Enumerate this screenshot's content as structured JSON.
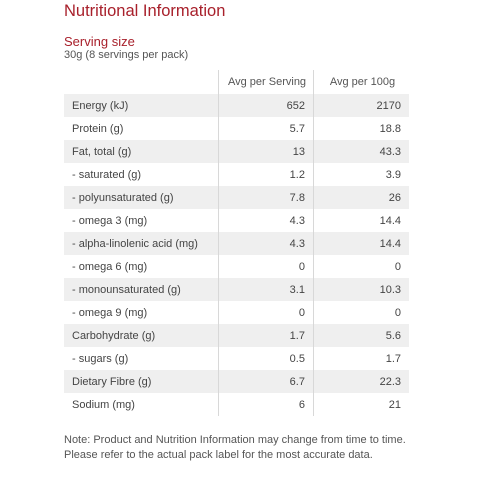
{
  "title": "Nutritional Information",
  "serving": {
    "heading": "Serving size",
    "detail": "30g (8 servings per pack)"
  },
  "table": {
    "headers": [
      "",
      "Avg per Serving",
      "Avg per 100g"
    ],
    "rows": [
      {
        "name": "Energy (kJ)",
        "per_serving": "652",
        "per_100g": "2170"
      },
      {
        "name": "Protein (g)",
        "per_serving": "5.7",
        "per_100g": "18.8"
      },
      {
        "name": "Fat, total (g)",
        "per_serving": "13",
        "per_100g": "43.3"
      },
      {
        "name": "- saturated (g)",
        "per_serving": "1.2",
        "per_100g": "3.9"
      },
      {
        "name": "- polyunsaturated (g)",
        "per_serving": "7.8",
        "per_100g": "26"
      },
      {
        "name": "- omega 3 (mg)",
        "per_serving": "4.3",
        "per_100g": "14.4"
      },
      {
        "name": "- alpha-linolenic acid (mg)",
        "per_serving": "4.3",
        "per_100g": "14.4"
      },
      {
        "name": "- omega 6 (mg)",
        "per_serving": "0",
        "per_100g": "0"
      },
      {
        "name": "- monounsaturated (g)",
        "per_serving": "3.1",
        "per_100g": "10.3"
      },
      {
        "name": "- omega 9 (mg)",
        "per_serving": "0",
        "per_100g": "0"
      },
      {
        "name": "Carbohydrate (g)",
        "per_serving": "1.7",
        "per_100g": "5.6"
      },
      {
        "name": "- sugars (g)",
        "per_serving": "0.5",
        "per_100g": "1.7"
      },
      {
        "name": "Dietary Fibre (g)",
        "per_serving": "6.7",
        "per_100g": "22.3"
      },
      {
        "name": "Sodium (mg)",
        "per_serving": "6",
        "per_100g": "21"
      }
    ]
  },
  "note": "Note: Product and Nutrition Information may change from time to time. Please refer to the actual pack label for the most accurate data.",
  "colors": {
    "accent": "#a8202b",
    "stripe": "#efefef",
    "text": "#444444"
  }
}
